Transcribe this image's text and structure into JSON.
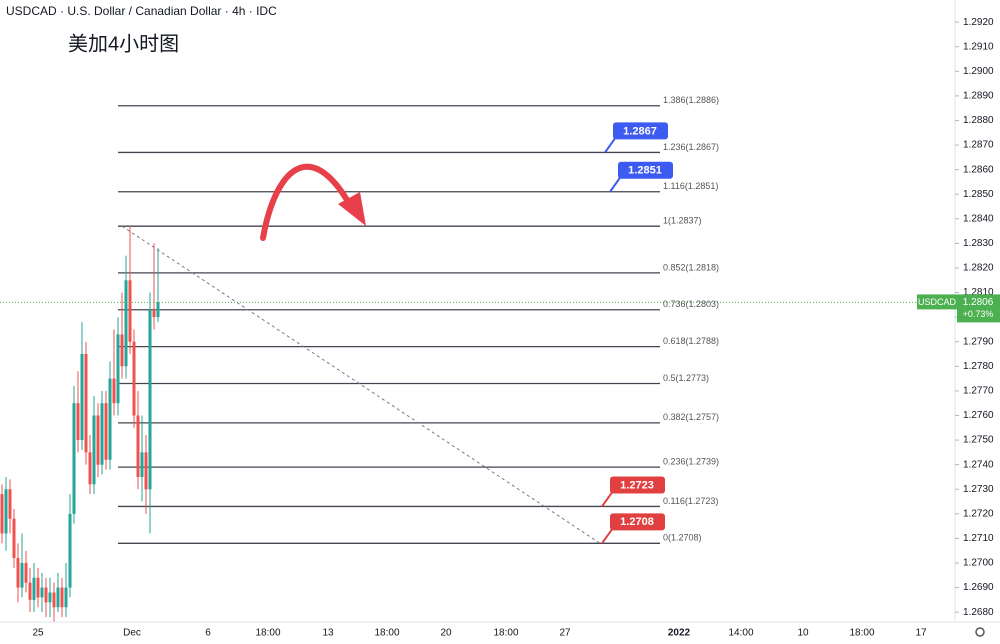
{
  "chart_data": {
    "type": "candlestick",
    "title": "USDCAD · U.S. Dollar / Canadian Dollar · 4h · IDC",
    "annotation": "美加4小时图",
    "ylim": [
      1.2676,
      1.2929
    ],
    "yticks": [
      {
        "value": 1.268,
        "label": "1.2680"
      },
      {
        "value": 1.269,
        "label": "1.2690"
      },
      {
        "value": 1.27,
        "label": "1.2700"
      },
      {
        "value": 1.271,
        "label": "1.2710"
      },
      {
        "value": 1.272,
        "label": "1.2720"
      },
      {
        "value": 1.273,
        "label": "1.2730"
      },
      {
        "value": 1.274,
        "label": "1.2740"
      },
      {
        "value": 1.275,
        "label": "1.2750"
      },
      {
        "value": 1.276,
        "label": "1.2760"
      },
      {
        "value": 1.277,
        "label": "1.2770"
      },
      {
        "value": 1.278,
        "label": "1.2780"
      },
      {
        "value": 1.279,
        "label": "1.2790"
      },
      {
        "value": 1.28,
        "label": "1.2800"
      },
      {
        "value": 1.281,
        "label": "1.2810"
      },
      {
        "value": 1.282,
        "label": "1.2820"
      },
      {
        "value": 1.283,
        "label": "1.2830"
      },
      {
        "value": 1.284,
        "label": "1.2840"
      },
      {
        "value": 1.285,
        "label": "1.2850"
      },
      {
        "value": 1.286,
        "label": "1.2860"
      },
      {
        "value": 1.287,
        "label": "1.2870"
      },
      {
        "value": 1.288,
        "label": "1.2880"
      },
      {
        "value": 1.289,
        "label": "1.2890"
      },
      {
        "value": 1.29,
        "label": "1.2900"
      },
      {
        "value": 1.291,
        "label": "1.2910"
      },
      {
        "value": 1.292,
        "label": "1.2920"
      }
    ],
    "x_labels": [
      "25",
      "Dec",
      "6",
      "18:00",
      "13",
      "18:00",
      "20",
      "18:00",
      "27",
      "2022",
      "14:00",
      "10",
      "18:00",
      "17"
    ],
    "up_color": "#26a69a",
    "down_color": "#ef5350",
    "candles": {
      "open": [
        1.2728,
        1.2712,
        1.273,
        1.2718,
        1.2702,
        1.269,
        1.27,
        1.2692,
        1.2685,
        1.2694,
        1.2686,
        1.269,
        1.2684,
        1.2688,
        1.2682,
        1.269,
        1.2682,
        1.269,
        1.272,
        1.2765,
        1.275,
        1.2785,
        1.2745,
        1.2732,
        1.276,
        1.274,
        1.2765,
        1.2742,
        1.2775,
        1.2765,
        1.2793,
        1.278,
        1.2815,
        1.279,
        1.276,
        1.2735,
        1.2745,
        1.273,
        1.2803,
        1.28
      ],
      "high": [
        1.2732,
        1.2735,
        1.2734,
        1.2722,
        1.2708,
        1.2712,
        1.2705,
        1.2698,
        1.27,
        1.2698,
        1.2696,
        1.2694,
        1.2694,
        1.2692,
        1.2696,
        1.2694,
        1.27,
        1.2728,
        1.2772,
        1.2778,
        1.2798,
        1.279,
        1.2752,
        1.2768,
        1.2765,
        1.277,
        1.277,
        1.2782,
        1.2795,
        1.28,
        1.281,
        1.2825,
        1.2837,
        1.2795,
        1.277,
        1.276,
        1.2752,
        1.281,
        1.283,
        1.2828
      ],
      "low": [
        1.2708,
        1.2705,
        1.2712,
        1.2698,
        1.2684,
        1.2686,
        1.2688,
        1.268,
        1.268,
        1.2682,
        1.268,
        1.2678,
        1.2678,
        1.2676,
        1.268,
        1.2678,
        1.2678,
        1.2686,
        1.2716,
        1.2745,
        1.2746,
        1.274,
        1.2728,
        1.2728,
        1.2735,
        1.2736,
        1.2738,
        1.2738,
        1.276,
        1.276,
        1.2775,
        1.2775,
        1.2785,
        1.2755,
        1.273,
        1.2725,
        1.272,
        1.2712,
        1.2795,
        1.2798
      ],
      "close": [
        1.2712,
        1.273,
        1.2718,
        1.2702,
        1.269,
        1.27,
        1.2692,
        1.2685,
        1.2694,
        1.2686,
        1.269,
        1.2684,
        1.2688,
        1.2682,
        1.269,
        1.2682,
        1.269,
        1.272,
        1.2765,
        1.275,
        1.2785,
        1.2745,
        1.2732,
        1.276,
        1.274,
        1.2765,
        1.2742,
        1.2775,
        1.2765,
        1.2793,
        1.278,
        1.2815,
        1.279,
        1.276,
        1.2735,
        1.2745,
        1.273,
        1.2803,
        1.28,
        1.2806
      ]
    },
    "fib_levels": [
      {
        "value": 1.2886,
        "label": "1.386(1.2886)"
      },
      {
        "value": 1.2867,
        "label": "1.236(1.2867)"
      },
      {
        "value": 1.2851,
        "label": "1.116(1.2851)"
      },
      {
        "value": 1.2837,
        "label": "1(1.2837)"
      },
      {
        "value": 1.2818,
        "label": "0.852(1.2818)"
      },
      {
        "value": 1.2803,
        "label": "0.736(1.2803)"
      },
      {
        "value": 1.2788,
        "label": "0.618(1.2788)"
      },
      {
        "value": 1.2773,
        "label": "0.5(1.2773)"
      },
      {
        "value": 1.2757,
        "label": "0.382(1.2757)"
      },
      {
        "value": 1.2739,
        "label": "0.236(1.2739)"
      },
      {
        "value": 1.2723,
        "label": "0.116(1.2723)"
      },
      {
        "value": 1.2708,
        "label": "0(1.2708)"
      }
    ],
    "price_markers": [
      {
        "value": 1.2867,
        "color": "#3d5af1"
      },
      {
        "value": 1.2851,
        "color": "#3d5af1"
      },
      {
        "value": 1.2723,
        "color": "#e0403f"
      },
      {
        "value": 1.2708,
        "color": "#e0403f"
      }
    ],
    "last_price": {
      "symbol": "USDCAD",
      "value": 1.2806,
      "change": 0.73,
      "change_label": "+0.73%",
      "color": "#4caf50"
    }
  }
}
